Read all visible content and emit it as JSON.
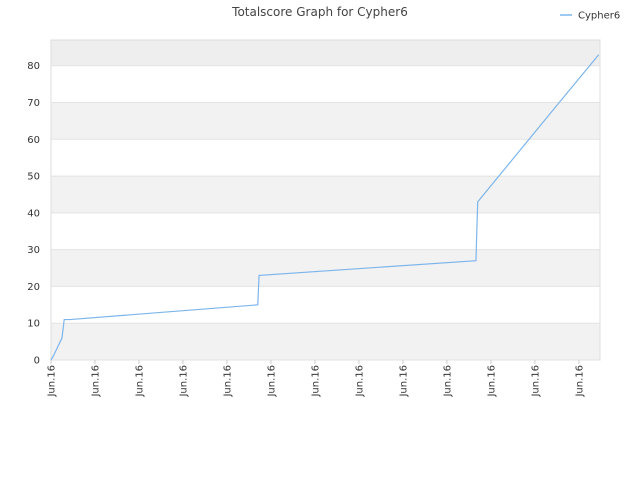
{
  "chart_data": {
    "type": "line",
    "title": "Totalscore Graph for Cypher6",
    "x": [
      0,
      0.05,
      0.25,
      0.3,
      0.43,
      4.7,
      4.73,
      9.66,
      9.7,
      11.45,
      12.45
    ],
    "series": [
      {
        "name": "Cypher6",
        "color": "#7cb5ec",
        "values": [
          0,
          1,
          6,
          11,
          11,
          15,
          23,
          27,
          43,
          68.5,
          83
        ]
      }
    ],
    "xlim": [
      0,
      12.48
    ],
    "xticks": [
      {
        "value": 0,
        "label": "Jun.16"
      },
      {
        "value": 1,
        "label": "Jun.16"
      },
      {
        "value": 2,
        "label": "Jun.16"
      },
      {
        "value": 3,
        "label": "Jun.16"
      },
      {
        "value": 4,
        "label": "Jun.16"
      },
      {
        "value": 5,
        "label": "Jun.16"
      },
      {
        "value": 6,
        "label": "Jun.16"
      },
      {
        "value": 7,
        "label": "Jun.16"
      },
      {
        "value": 8,
        "label": "Jun.16"
      },
      {
        "value": 9,
        "label": "Jun.16"
      },
      {
        "value": 10,
        "label": "Jun.16"
      },
      {
        "value": 11,
        "label": "Jun.16"
      },
      {
        "value": 12,
        "label": "Jun.16"
      }
    ],
    "ylim": [
      0,
      87
    ],
    "yticks": [
      0,
      10,
      20,
      30,
      40,
      50,
      60,
      70,
      80
    ],
    "grid": true,
    "legend": "top-right"
  }
}
